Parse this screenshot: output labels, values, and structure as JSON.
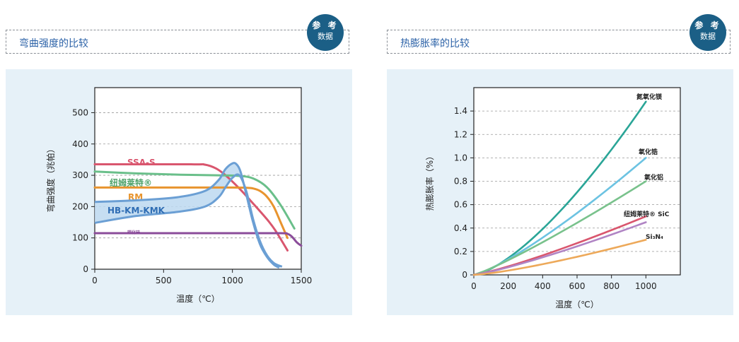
{
  "left_panel": {
    "title": "弯曲强度的比较",
    "badge": {
      "line1": "参 考",
      "line2": "数据"
    }
  },
  "right_panel": {
    "title": "热膨胀率的比较",
    "badge": {
      "line1": "参 考",
      "line2": "数据"
    }
  },
  "chart_data": [
    {
      "type": "line",
      "xlabel": "温度（℃）",
      "ylabel": "弯曲强度（兆帕）",
      "xlim": [
        0,
        1500
      ],
      "ylim": [
        0,
        580
      ],
      "xticks": [
        0,
        500,
        1000,
        1500
      ],
      "yticks": [
        0,
        100,
        200,
        300,
        400,
        500
      ],
      "grid": "horizontal dashed",
      "series": [
        {
          "name": "SSA-S",
          "color": "#d9566e",
          "x": [
            0,
            700,
            800,
            880,
            950,
            1050,
            1150,
            1250,
            1310,
            1400
          ],
          "y": [
            335,
            335,
            334,
            322,
            300,
            258,
            210,
            160,
            125,
            60
          ]
        },
        {
          "name": "纽姆莱特®",
          "color": "#6abf8a",
          "x": [
            0,
            300,
            600,
            900,
            1050,
            1150,
            1250,
            1350,
            1450
          ],
          "y": [
            312,
            306,
            302,
            300,
            298,
            290,
            262,
            205,
            130
          ]
        },
        {
          "name": "RM",
          "color": "#e8942e",
          "x": [
            0,
            500,
            1000,
            1100,
            1150,
            1200,
            1250,
            1300,
            1350,
            1400
          ],
          "y": [
            261,
            261,
            261,
            260,
            258,
            250,
            232,
            200,
            150,
            100
          ]
        },
        {
          "name": "碳化硅",
          "color": "#8b4c9a",
          "x": [
            0,
            500,
            1000,
            1350,
            1400,
            1430,
            1450,
            1470,
            1500
          ],
          "y": [
            115,
            115,
            115,
            115,
            113,
            105,
            95,
            85,
            75
          ]
        }
      ],
      "band": {
        "name": "HB-KM-KMK",
        "color": "#6b9fd4",
        "upper": {
          "x": [
            0,
            300,
            600,
            800,
            900,
            950,
            1000,
            1030,
            1060,
            1100,
            1150,
            1200,
            1250,
            1300,
            1340
          ],
          "y": [
            215,
            220,
            230,
            250,
            285,
            320,
            338,
            335,
            310,
            240,
            150,
            80,
            40,
            15,
            5
          ]
        },
        "lower": {
          "x": [
            0,
            300,
            600,
            800,
            900,
            950,
            1000,
            1050,
            1100,
            1150,
            1200,
            1250,
            1300,
            1360
          ],
          "y": [
            148,
            170,
            183,
            200,
            230,
            262,
            292,
            300,
            250,
            160,
            90,
            45,
            20,
            8
          ]
        }
      }
    },
    {
      "type": "line",
      "xlabel": "温度（℃）",
      "ylabel": "热膨胀率（%）",
      "xlim": [
        0,
        1200
      ],
      "ylim": [
        0,
        1.6
      ],
      "xticks": [
        0,
        200,
        400,
        600,
        800,
        1000
      ],
      "yticks": [
        0,
        0.2,
        0.4,
        0.6,
        0.8,
        1.0,
        1.2,
        1.4
      ],
      "ytick_labels": [
        "0",
        "0.2",
        "0.4",
        "0.6",
        "0.8",
        "1.0",
        "1.2",
        "1.4"
      ],
      "grid": "horizontal dashed",
      "series": [
        {
          "name": "氮氧化镁",
          "color": "#2aa597",
          "x": [
            0,
            1000
          ],
          "y": [
            0,
            1.48
          ],
          "exponent": 1.45
        },
        {
          "name": "氧化锆",
          "color": "#6cc3e2",
          "x": [
            0,
            1000
          ],
          "y": [
            0,
            1.0
          ],
          "exponent": 1.25
        },
        {
          "name": "氧化铝",
          "color": "#79c28c",
          "x": [
            0,
            1000
          ],
          "y": [
            0,
            0.8
          ],
          "exponent": 1.15
        },
        {
          "name": "纽姆莱特® SiC",
          "color": "#d9566e",
          "x": [
            0,
            1000
          ],
          "y": [
            0,
            0.5
          ],
          "exponent": 1.2
        },
        {
          "name": "",
          "color": "#b084c4",
          "x": [
            0,
            1000
          ],
          "y": [
            0,
            0.45
          ],
          "exponent": 1.2
        },
        {
          "name": "Si₃N₄",
          "color": "#eda95a",
          "x": [
            0,
            1000
          ],
          "y": [
            0,
            0.3
          ],
          "exponent": 1.3
        }
      ]
    }
  ]
}
